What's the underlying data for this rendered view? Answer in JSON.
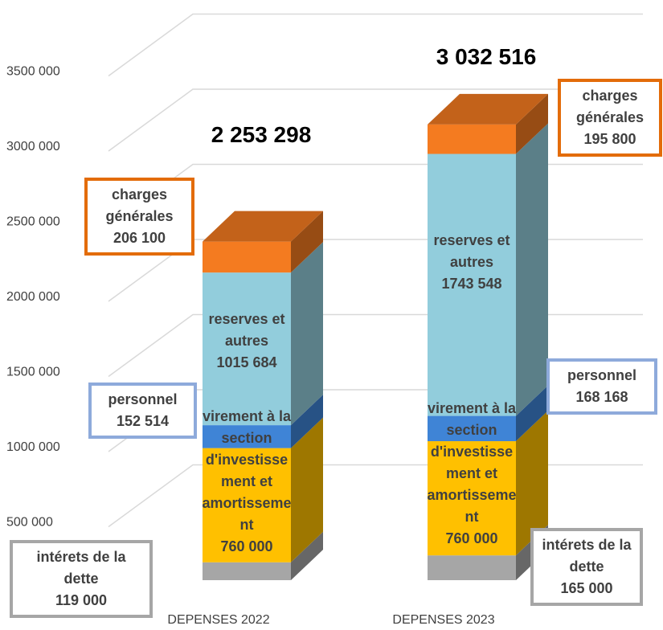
{
  "chart_data": {
    "type": "bar3d_stacked",
    "categories": [
      "DEPENSES 2022",
      "DEPENSES 2023"
    ],
    "series": [
      {
        "name": "intérets de la dette",
        "color": "#a6a6a6",
        "values": [
          119000,
          165000
        ],
        "value_labels": [
          "119 000",
          "165 000"
        ]
      },
      {
        "name": "virement à la section d'investissement et amortissement",
        "color": "#ffc000",
        "values": [
          760000,
          760000
        ],
        "value_labels": [
          "760 000",
          "760 000"
        ]
      },
      {
        "name": "personnel",
        "color": "#3f84d6",
        "values": [
          152514,
          168168
        ],
        "value_labels": [
          "152 514",
          "168 168"
        ]
      },
      {
        "name": "reserves et autres",
        "color": "#92cddc",
        "values": [
          1015684,
          1743548
        ],
        "value_labels": [
          "1015 684",
          "1743 548"
        ]
      },
      {
        "name": "charges générales",
        "color": "#f47b20",
        "values": [
          206100,
          195800
        ],
        "value_labels": [
          "206 100",
          "195 800"
        ]
      }
    ],
    "totals": [
      2253298,
      3032516
    ],
    "total_labels": [
      "2 253 298",
      "3 032 516"
    ],
    "ylim": [
      0,
      4000000
    ],
    "yticks": [
      {
        "value": 500000,
        "label": "500 000"
      },
      {
        "value": 1000000,
        "label": "1000 000"
      },
      {
        "value": 1500000,
        "label": "1500 000"
      },
      {
        "value": 2000000,
        "label": "2000 000"
      },
      {
        "value": 2500000,
        "label": "2500 000"
      },
      {
        "value": 3000000,
        "label": "3000 000"
      },
      {
        "value": 3500000,
        "label": "3500 000"
      }
    ],
    "grid": true
  }
}
